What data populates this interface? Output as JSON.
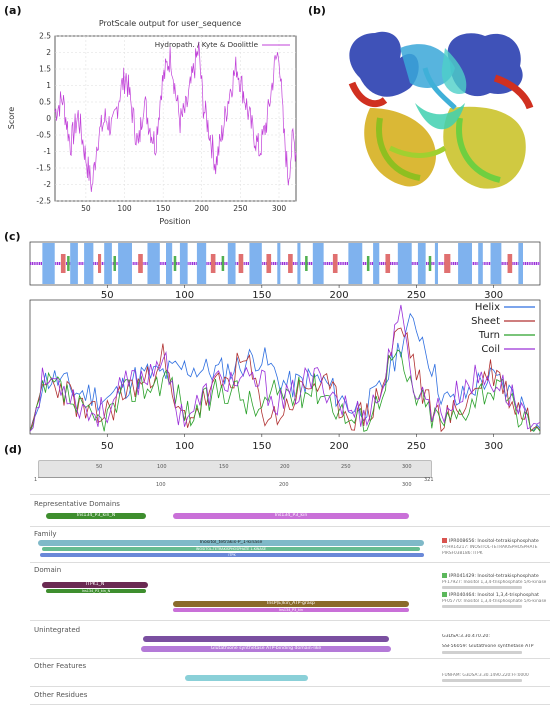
{
  "labels": {
    "a": "(a)",
    "b": "(b)",
    "c": "(c)",
    "d": "(d)"
  },
  "panel_a": {
    "title": "ProtScale output for user_sequence",
    "ylabel": "Score",
    "xlabel": "Position",
    "legend": "Hydropath. / Kyte & Doolittle",
    "yticks": [
      "2.5",
      "2",
      "1.5",
      "1",
      "0.5",
      "0",
      "-0.5",
      "-1",
      "-1.5",
      "-2",
      "-2.5"
    ],
    "xticks": [
      "50",
      "100",
      "150",
      "200",
      "250",
      "300"
    ]
  },
  "panel_c": {
    "xticks": [
      "50",
      "100",
      "150",
      "200",
      "250",
      "300"
    ],
    "legend": [
      "Helix",
      "Sheet",
      "Turn",
      "Coil"
    ],
    "colors": {
      "Helix": "#2f6fe0",
      "Sheet": "#b03030",
      "Turn": "#2aa02a",
      "Coil": "#9a30d8"
    }
  },
  "panel_d": {
    "ruler_top_ticks": [
      "50",
      "100",
      "150",
      "200",
      "250",
      "300"
    ],
    "ruler_start": "1",
    "ruler_end": "321",
    "ruler_bottom_ticks": [
      "100",
      "200",
      "300"
    ],
    "sections": {
      "rep": "Representative Domains",
      "family": "Family",
      "domain": "Domain",
      "unintegrated": "Unintegrated",
      "other_features": "Other Features",
      "other_residues": "Other Residues"
    },
    "rep_bars": {
      "a": "Ins134_P3_kin_N",
      "b": "Ins134_P3_kin"
    },
    "family_bars": {
      "a": "Inositol_tetrakis-P_1-kinase",
      "b": "INOSITOL-TETRAKISPHOSPHATE 1-KINASE",
      "c": "ITPK"
    },
    "domain_bars": {
      "a": "ITPK1_N",
      "a_sub": "Ins134_P3_kin_N",
      "b": "InsP(E)kin_ATP-grasp",
      "b_sub": "Ins134_P3_kin"
    },
    "unint_bars": {
      "b": "Glutathione synthetase ATP-binding domain-like"
    },
    "side_family": [
      "IPR008656: Inositol-tetrakisphosphate",
      "PTHR14217: INOSITOL-TETRAKISPHOSPHATE",
      "PIRSF038186: ITPK"
    ],
    "side_domain": [
      "IPR041429: Inositol-tetrakisphosphate",
      "PF17927: Inositol 1,3,4-trisphosphate 5/6-kinase",
      "IPR040464: Inositol 1,3,4-trisphosphat",
      "PF05770: Inositol 1,3,4-trisphosphate 5/6-kinase"
    ],
    "side_unint": [
      "G3DSA:3.30.470.20:",
      "SSF56059: Glutathione synthetase ATP"
    ],
    "side_other": [
      "FUNFAM: G3DSA:3.30.1490.220:FF:0000"
    ],
    "icon_colors": {
      "family": "#d9534f",
      "domain": "#5cb85c"
    }
  }
}
